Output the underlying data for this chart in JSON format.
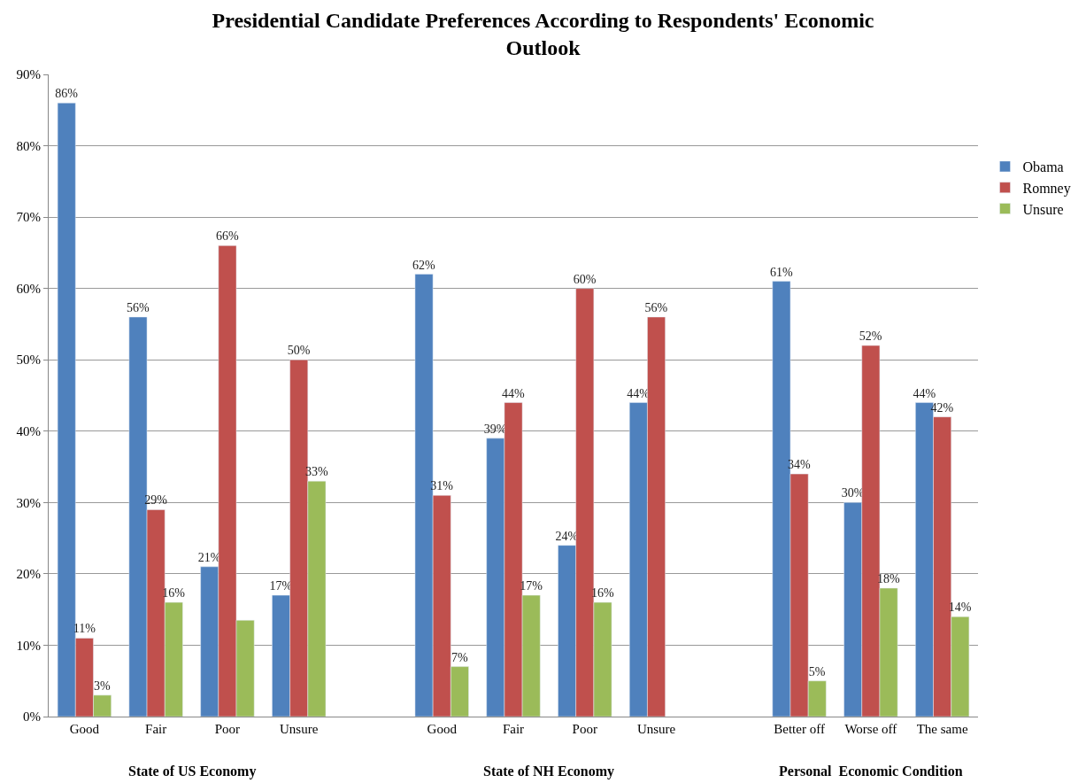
{
  "chart_data": {
    "type": "bar",
    "title": "Presidential Candidate Preferences According to Respondents' Economic Outlook",
    "categories": [
      "Good",
      "Fair",
      "Poor",
      "Unsure",
      null,
      "Good",
      "Fair",
      "Poor",
      "Unsure",
      null,
      "Better off",
      "Worse off",
      "The same"
    ],
    "series": [
      {
        "name": "Obama",
        "color": "#4f81bd",
        "values": [
          86,
          56,
          21,
          17,
          null,
          62,
          39,
          24,
          44,
          null,
          61,
          30,
          44
        ],
        "value_labels": [
          "86%",
          "56%",
          "21%",
          "17%",
          null,
          "62%",
          "39%",
          "24%",
          "44%",
          null,
          "61%",
          "30%",
          "44%"
        ]
      },
      {
        "name": "Romney",
        "color": "#c0504d",
        "values": [
          11,
          29,
          66,
          50,
          null,
          31,
          44,
          60,
          56,
          null,
          34,
          52,
          42
        ],
        "value_labels": [
          "11%",
          "29%",
          "66%",
          "50%",
          null,
          "31%",
          "44%",
          "60%",
          "56%",
          null,
          "34%",
          "52%",
          "42%"
        ]
      },
      {
        "name": "Unsure",
        "color": "#9bbb59",
        "values": [
          3,
          16,
          13.5,
          33,
          null,
          7,
          17,
          16,
          null,
          null,
          5,
          18,
          14
        ],
        "value_labels": [
          "3%",
          "16%",
          null,
          "33%",
          null,
          "7%",
          "17%",
          "16%",
          null,
          null,
          "5%",
          "18%",
          "14%"
        ]
      }
    ],
    "annotations": [
      "State of US Economy",
      "State of NH Economy",
      "Personal  Economic Condition"
    ],
    "ylim": [
      0,
      90
    ],
    "yticks": [
      {
        "value": 0,
        "label": "0%"
      },
      {
        "value": 10,
        "label": "10%"
      },
      {
        "value": 20,
        "label": "20%"
      },
      {
        "value": 30,
        "label": "30%"
      },
      {
        "value": 40,
        "label": "40%"
      },
      {
        "value": 50,
        "label": "50%"
      },
      {
        "value": 60,
        "label": "60%"
      },
      {
        "value": 70,
        "label": "70%"
      },
      {
        "value": 80,
        "label": "80%"
      },
      {
        "value": 90,
        "label": "90%"
      }
    ],
    "grid": "y",
    "legend": "right"
  }
}
